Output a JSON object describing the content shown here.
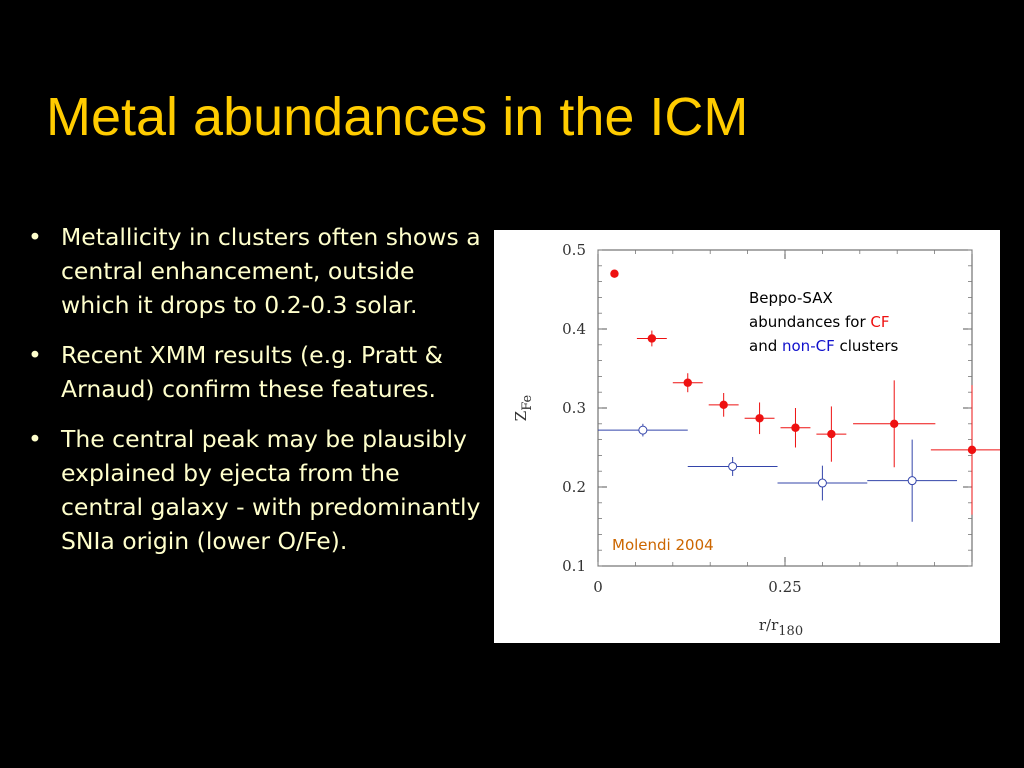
{
  "slide": {
    "title": "Metal abundances in the ICM",
    "bullets": [
      "Metallicity in clusters often shows a central enhancement, outside which it drops to 0.2-0.3 solar.",
      "Recent XMM results (e.g. Pratt & Arnaud) confirm these features.",
      "The central peak may be plausibly explained by ejecta from the central galaxy - with predominantly SNIa origin (lower O/Fe)."
    ],
    "bullet_symbol": "•"
  },
  "annotation": {
    "line1": "Beppo-SAX",
    "line2_prefix": "abundances for ",
    "cf": "CF",
    "line3_prefix": "and ",
    "noncf": "non-CF",
    "line3_suffix": " clusters"
  },
  "credit": "Molendi 2004",
  "colors": {
    "title": "#ffcc00",
    "text": "#ffffcc",
    "cf": "#ee1111",
    "noncf": "#1111cc",
    "credit": "#cc6600"
  },
  "chart_data": {
    "type": "scatter",
    "xlabel": "r/r",
    "xlabel_sub": "180",
    "ylabel": "Z",
    "ylabel_sub": "Fe",
    "xlim": [
      0,
      0.5
    ],
    "ylim": [
      0.1,
      0.5
    ],
    "xticks": [
      0,
      0.25
    ],
    "xtick_labels": [
      "0",
      "0.25"
    ],
    "yticks": [
      0.1,
      0.2,
      0.3,
      0.4,
      0.5
    ],
    "ytick_labels": [
      "0.1",
      "0.2",
      "0.3",
      "0.4",
      "0.5"
    ],
    "series": [
      {
        "name": "CF",
        "marker": "filled-circle",
        "color": "#ee1111",
        "points": [
          {
            "x": 0.022,
            "y": 0.47,
            "xerr": 0.0,
            "yerr": 0.0
          },
          {
            "x": 0.072,
            "y": 0.388,
            "xerr": 0.02,
            "yerr": 0.01
          },
          {
            "x": 0.12,
            "y": 0.332,
            "xerr": 0.02,
            "yerr": 0.012
          },
          {
            "x": 0.168,
            "y": 0.304,
            "xerr": 0.02,
            "yerr": 0.015
          },
          {
            "x": 0.216,
            "y": 0.287,
            "xerr": 0.02,
            "yerr": 0.02
          },
          {
            "x": 0.264,
            "y": 0.275,
            "xerr": 0.02,
            "yerr": 0.025
          },
          {
            "x": 0.312,
            "y": 0.267,
            "xerr": 0.02,
            "yerr": 0.035
          },
          {
            "x": 0.396,
            "y": 0.28,
            "xerr": 0.055,
            "yerr": 0.055
          },
          {
            "x": 0.5,
            "y": 0.247,
            "xerr": 0.055,
            "yerr": 0.082
          }
        ]
      },
      {
        "name": "non-CF",
        "marker": "open-circle",
        "color": "#3344aa",
        "points": [
          {
            "x": 0.06,
            "y": 0.272,
            "xerr": 0.06,
            "yerr": 0.008
          },
          {
            "x": 0.18,
            "y": 0.226,
            "xerr": 0.06,
            "yerr": 0.012
          },
          {
            "x": 0.3,
            "y": 0.205,
            "xerr": 0.06,
            "yerr": 0.022
          },
          {
            "x": 0.42,
            "y": 0.208,
            "xerr": 0.06,
            "yerr": 0.052
          }
        ]
      }
    ]
  }
}
